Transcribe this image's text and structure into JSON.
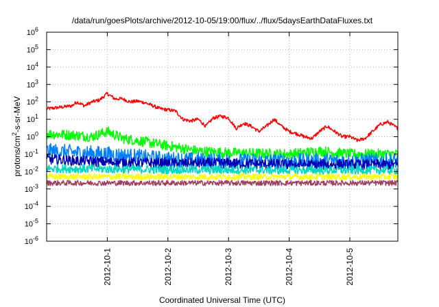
{
  "chart_data": {
    "type": "line",
    "title": "/data/run/goesPlots/archive/2012-10-05/19:00/flux/../flux/5daysEarthDataFluxes.txt",
    "xlabel": "Coordinated Universal Time (UTC)",
    "ylabel_parts": [
      "protons/cm",
      "2",
      "-s-sr-MeV"
    ],
    "ylabel": "protons/cm2-s-sr-MeV",
    "yscale": "log",
    "ylim": [
      1e-06,
      1000000.0
    ],
    "y_ticks": [
      {
        "value": 1e-06,
        "base": "10",
        "exp": "-6"
      },
      {
        "value": 1e-05,
        "base": "10",
        "exp": "-5"
      },
      {
        "value": 0.0001,
        "base": "10",
        "exp": "-4"
      },
      {
        "value": 0.001,
        "base": "10",
        "exp": "-3"
      },
      {
        "value": 0.01,
        "base": "10",
        "exp": "-2"
      },
      {
        "value": 0.1,
        "base": "10",
        "exp": "-1"
      },
      {
        "value": 1,
        "base": "10",
        "exp": "0"
      },
      {
        "value": 10,
        "base": "10",
        "exp": "1"
      },
      {
        "value": 100,
        "base": "10",
        "exp": "2"
      },
      {
        "value": 1000,
        "base": "10",
        "exp": "3"
      },
      {
        "value": 10000,
        "base": "10",
        "exp": "4"
      },
      {
        "value": 100000,
        "base": "10",
        "exp": "5"
      },
      {
        "value": 1000000,
        "base": "10",
        "exp": "6"
      }
    ],
    "xlim": [
      "2012-09-30T00:00",
      "2012-10-05T19:00"
    ],
    "x_ticks": [
      {
        "value": "2012-10-01T00:00",
        "label": "2012-10-1"
      },
      {
        "value": "2012-10-02T00:00",
        "label": "2012-10-2"
      },
      {
        "value": "2012-10-03T00:00",
        "label": "2012-10-3"
      },
      {
        "value": "2012-10-04T00:00",
        "label": "2012-10-4"
      },
      {
        "value": "2012-10-05T00:00",
        "label": "2012-10-5"
      }
    ],
    "grid": true,
    "legend": "none",
    "series": [
      {
        "color": "#ff0000",
        "noise": 0.1,
        "points": [
          [
            "2012-09-30T00:00",
            40
          ],
          [
            "2012-09-30T06:00",
            50
          ],
          [
            "2012-09-30T10:00",
            60
          ],
          [
            "2012-09-30T12:00",
            100
          ],
          [
            "2012-09-30T15:00",
            60
          ],
          [
            "2012-09-30T18:00",
            100
          ],
          [
            "2012-09-30T21:00",
            130
          ],
          [
            "2012-10-01T00:00",
            300
          ],
          [
            "2012-10-01T03:00",
            150
          ],
          [
            "2012-10-01T06:00",
            150
          ],
          [
            "2012-10-01T09:00",
            100
          ],
          [
            "2012-10-01T12:00",
            110
          ],
          [
            "2012-10-01T15:00",
            90
          ],
          [
            "2012-10-01T18:00",
            60
          ],
          [
            "2012-10-01T21:00",
            40
          ],
          [
            "2012-10-02T00:00",
            35
          ],
          [
            "2012-10-02T03:00",
            30
          ],
          [
            "2012-10-02T06:00",
            10
          ],
          [
            "2012-10-02T09:00",
            8
          ],
          [
            "2012-10-02T12:00",
            10
          ],
          [
            "2012-10-02T15:00",
            4
          ],
          [
            "2012-10-02T18:00",
            12
          ],
          [
            "2012-10-02T21:00",
            15
          ],
          [
            "2012-10-03T00:00",
            12
          ],
          [
            "2012-10-03T03:00",
            3
          ],
          [
            "2012-10-03T06:00",
            6
          ],
          [
            "2012-10-03T09:00",
            4
          ],
          [
            "2012-10-03T12:00",
            2
          ],
          [
            "2012-10-03T15:00",
            4
          ],
          [
            "2012-10-03T18:00",
            10
          ],
          [
            "2012-10-03T21:00",
            4
          ],
          [
            "2012-10-04T00:00",
            2
          ],
          [
            "2012-10-04T03:00",
            1.5
          ],
          [
            "2012-10-04T06:00",
            1
          ],
          [
            "2012-10-04T09:00",
            0.8
          ],
          [
            "2012-10-04T12:00",
            2
          ],
          [
            "2012-10-04T15:00",
            4
          ],
          [
            "2012-10-04T18:00",
            2
          ],
          [
            "2012-10-04T21:00",
            1
          ],
          [
            "2012-10-05T00:00",
            1
          ],
          [
            "2012-10-05T03:00",
            0.6
          ],
          [
            "2012-10-05T06:00",
            0.8
          ],
          [
            "2012-10-05T09:00",
            2
          ],
          [
            "2012-10-05T12:00",
            5
          ],
          [
            "2012-10-05T15:00",
            7
          ],
          [
            "2012-10-05T19:00",
            3
          ]
        ]
      },
      {
        "color": "#00ff00",
        "noise": 0.3,
        "points": [
          [
            "2012-09-30T00:00",
            1.5
          ],
          [
            "2012-09-30T12:00",
            1.2
          ],
          [
            "2012-09-30T18:00",
            1
          ],
          [
            "2012-10-01T00:00",
            2
          ],
          [
            "2012-10-01T06:00",
            0.8
          ],
          [
            "2012-10-01T12:00",
            0.6
          ],
          [
            "2012-10-02T00:00",
            0.3
          ],
          [
            "2012-10-02T12:00",
            0.15
          ],
          [
            "2012-10-03T00:00",
            0.12
          ],
          [
            "2012-10-04T00:00",
            0.1
          ],
          [
            "2012-10-04T12:00",
            0.15
          ],
          [
            "2012-10-05T00:00",
            0.1
          ],
          [
            "2012-10-05T19:00",
            0.1
          ]
        ]
      },
      {
        "color": "#0080ff",
        "noise": 0.45,
        "points": [
          [
            "2012-09-30T00:00",
            0.15
          ],
          [
            "2012-10-01T00:00",
            0.1
          ],
          [
            "2012-10-02T00:00",
            0.05
          ],
          [
            "2012-10-03T00:00",
            0.04
          ],
          [
            "2012-10-04T00:00",
            0.04
          ],
          [
            "2012-10-05T00:00",
            0.04
          ],
          [
            "2012-10-05T19:00",
            0.04
          ]
        ]
      },
      {
        "color": "#0000b0",
        "noise": 0.3,
        "points": [
          [
            "2012-09-30T00:00",
            0.05
          ],
          [
            "2012-10-01T00:00",
            0.035
          ],
          [
            "2012-10-02T00:00",
            0.03
          ],
          [
            "2012-10-03T00:00",
            0.03
          ],
          [
            "2012-10-04T00:00",
            0.025
          ],
          [
            "2012-10-05T00:00",
            0.025
          ],
          [
            "2012-10-05T19:00",
            0.025
          ]
        ]
      },
      {
        "color": "#00d8c0",
        "noise": 0.25,
        "points": [
          [
            "2012-09-30T00:00",
            0.015
          ],
          [
            "2012-10-02T00:00",
            0.013
          ],
          [
            "2012-10-04T00:00",
            0.012
          ],
          [
            "2012-10-05T19:00",
            0.012
          ]
        ]
      },
      {
        "color": "#ffff00",
        "noise": 0.18,
        "points": [
          [
            "2012-09-30T00:00",
            0.005
          ],
          [
            "2012-10-02T00:00",
            0.005
          ],
          [
            "2012-10-04T00:00",
            0.005
          ],
          [
            "2012-10-05T19:00",
            0.005
          ]
        ]
      },
      {
        "color": "#a04060",
        "noise": 0.15,
        "points": [
          [
            "2012-09-30T00:00",
            0.0022
          ],
          [
            "2012-10-02T00:00",
            0.0022
          ],
          [
            "2012-10-04T00:00",
            0.0022
          ],
          [
            "2012-10-05T19:00",
            0.0022
          ]
        ]
      }
    ]
  }
}
